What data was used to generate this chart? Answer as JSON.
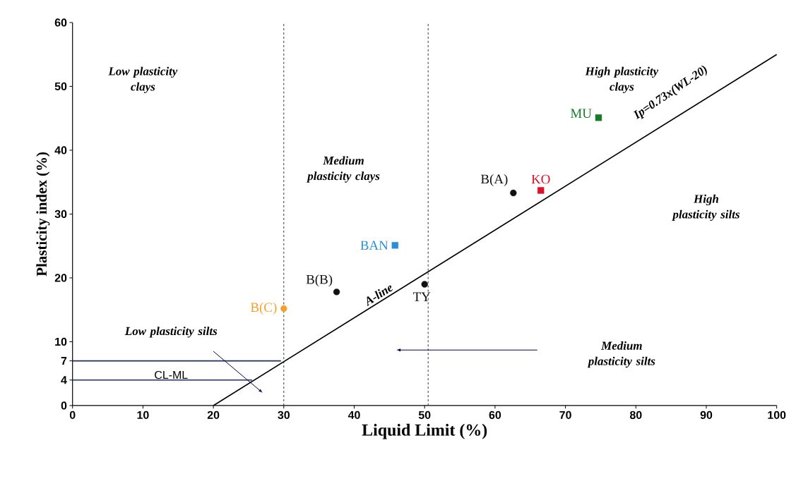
{
  "chart_data": {
    "type": "scatter",
    "xlabel": "Liquid Limit (%)",
    "ylabel": "Plasticity index (%)",
    "xlim": [
      0,
      100
    ],
    "ylim": [
      0,
      60
    ],
    "xticks": [
      0,
      10,
      20,
      30,
      40,
      50,
      60,
      70,
      80,
      90,
      100
    ],
    "yticks": [
      0,
      4,
      7,
      10,
      20,
      30,
      40,
      50,
      60
    ],
    "grid": false,
    "series": [
      {
        "name": "B(C)",
        "color": "#f5a02a",
        "x": [
          30
        ],
        "values": [
          15.2
        ],
        "marker": "circle"
      },
      {
        "name": "B(B)",
        "color": "#111111",
        "x": [
          37.5
        ],
        "values": [
          17.8
        ],
        "marker": "circle"
      },
      {
        "name": "BAN",
        "color": "#2a8fd8",
        "x": [
          45.8
        ],
        "values": [
          25.1
        ],
        "marker": "square"
      },
      {
        "name": "TY",
        "color": "#111111",
        "x": [
          50
        ],
        "values": [
          19
        ],
        "marker": "circle"
      },
      {
        "name": "B(A)",
        "color": "#111111",
        "x": [
          62.6
        ],
        "values": [
          33.3
        ],
        "marker": "circle"
      },
      {
        "name": "KO",
        "color": "#e0102a",
        "x": [
          66.5
        ],
        "values": [
          33.7
        ],
        "marker": "square"
      },
      {
        "name": "MU",
        "color": "#1a7a2a",
        "x": [
          74.7
        ],
        "values": [
          45.1
        ],
        "marker": "square"
      },
      {
        "name": "A-line",
        "type": "line",
        "color": "#000000",
        "x": [
          20,
          100
        ],
        "values": [
          0,
          55
        ],
        "marker": "none"
      },
      {
        "type": "line",
        "color": "#1f2f5f",
        "x": [
          0,
          29.6
        ],
        "values": [
          7,
          7
        ],
        "marker": "none"
      },
      {
        "type": "line",
        "color": "#1f2f5f",
        "x": [
          0,
          25.5
        ],
        "values": [
          4,
          4
        ],
        "marker": "none"
      }
    ],
    "ref_lines": [
      {
        "axis": "x",
        "value": 30,
        "line_style": "dashed"
      },
      {
        "axis": "x",
        "value": 50.5,
        "line_style": "dashed"
      }
    ],
    "annotations": [
      "Low plasticity clays",
      "Medium plasticity clays",
      "High plasticity  clays",
      "High plasticity silts",
      "Medium plasticity silts",
      "Low plasticity silts",
      "CL-ML",
      "Ip=0.73x(WL-20)"
    ]
  }
}
